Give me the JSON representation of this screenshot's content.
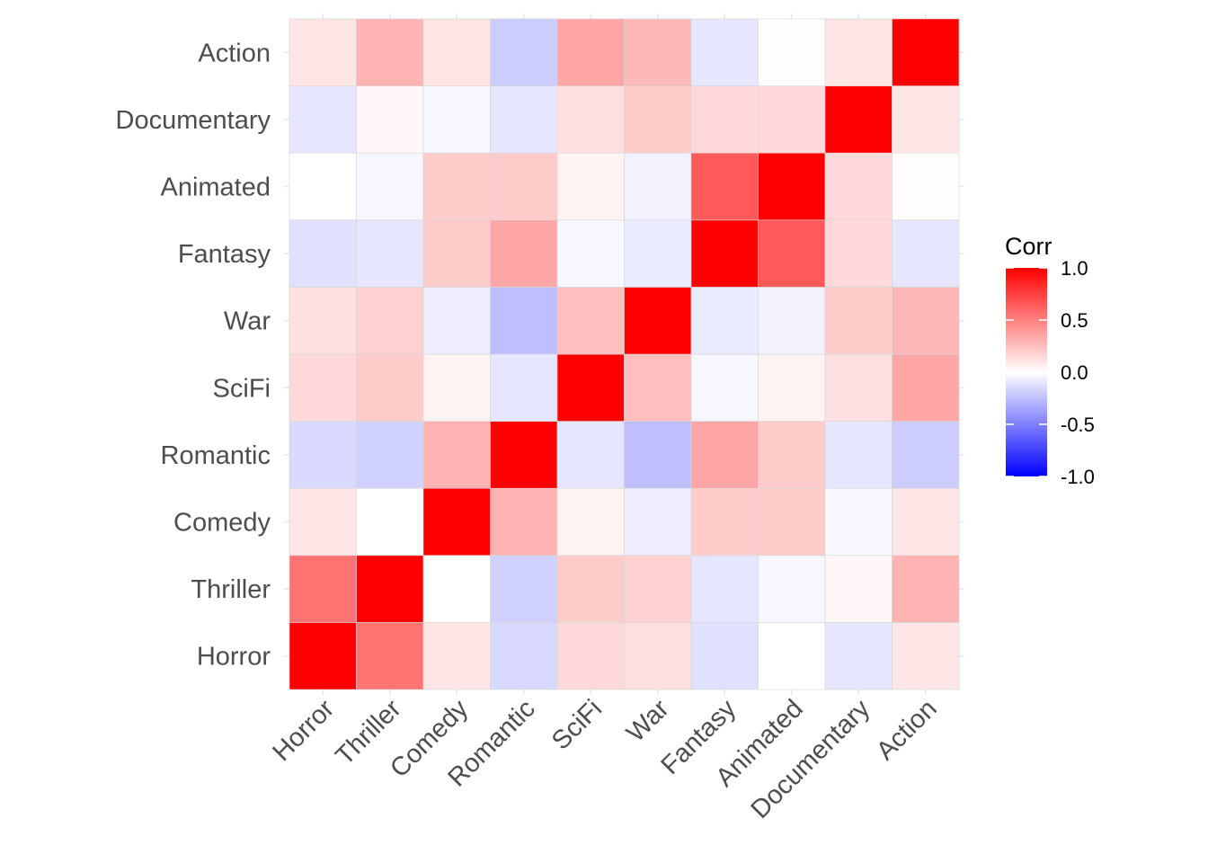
{
  "chart_data": {
    "type": "heatmap",
    "title": "",
    "xlabel": "",
    "ylabel": "",
    "categories": [
      "Horror",
      "Thriller",
      "Comedy",
      "Romantic",
      "SciFi",
      "War",
      "Fantasy",
      "Animated",
      "Documentary",
      "Action"
    ],
    "matrix": [
      [
        1.0,
        0.55,
        0.1,
        -0.15,
        0.15,
        0.12,
        -0.12,
        0.0,
        -0.1,
        0.1
      ],
      [
        0.55,
        1.0,
        0.0,
        -0.18,
        0.2,
        0.18,
        -0.1,
        -0.03,
        0.03,
        0.3
      ],
      [
        0.1,
        0.0,
        1.0,
        0.3,
        0.05,
        -0.07,
        0.2,
        0.2,
        -0.03,
        0.1
      ],
      [
        -0.15,
        -0.18,
        0.3,
        1.0,
        -0.1,
        -0.25,
        0.35,
        0.2,
        -0.1,
        -0.2
      ],
      [
        0.15,
        0.2,
        0.05,
        -0.1,
        1.0,
        0.25,
        -0.03,
        0.05,
        0.12,
        0.35
      ],
      [
        0.12,
        0.18,
        -0.07,
        -0.25,
        0.25,
        1.0,
        -0.08,
        -0.05,
        0.2,
        0.28
      ],
      [
        -0.12,
        -0.1,
        0.2,
        0.35,
        -0.03,
        -0.08,
        1.0,
        0.65,
        0.15,
        -0.1
      ],
      [
        0.0,
        -0.03,
        0.2,
        0.2,
        0.05,
        -0.05,
        0.65,
        1.0,
        0.15,
        0.01
      ],
      [
        -0.1,
        0.03,
        -0.03,
        -0.1,
        0.12,
        0.2,
        0.15,
        0.15,
        1.0,
        0.1
      ],
      [
        0.1,
        0.3,
        0.1,
        -0.2,
        0.35,
        0.28,
        -0.1,
        0.01,
        0.1,
        1.0
      ]
    ],
    "color_scale": {
      "low": "#0000ff",
      "mid": "#ffffff",
      "high": "#ff0000",
      "limits": [
        -1,
        1
      ]
    },
    "legend": {
      "title": "Corr",
      "placement": "right",
      "breaks": [
        1.0,
        0.5,
        0.0,
        -0.5,
        -1.0
      ],
      "labels": [
        "1.0",
        "0.5",
        "0.0",
        "-0.5",
        "-1.0"
      ]
    },
    "grid": true
  }
}
